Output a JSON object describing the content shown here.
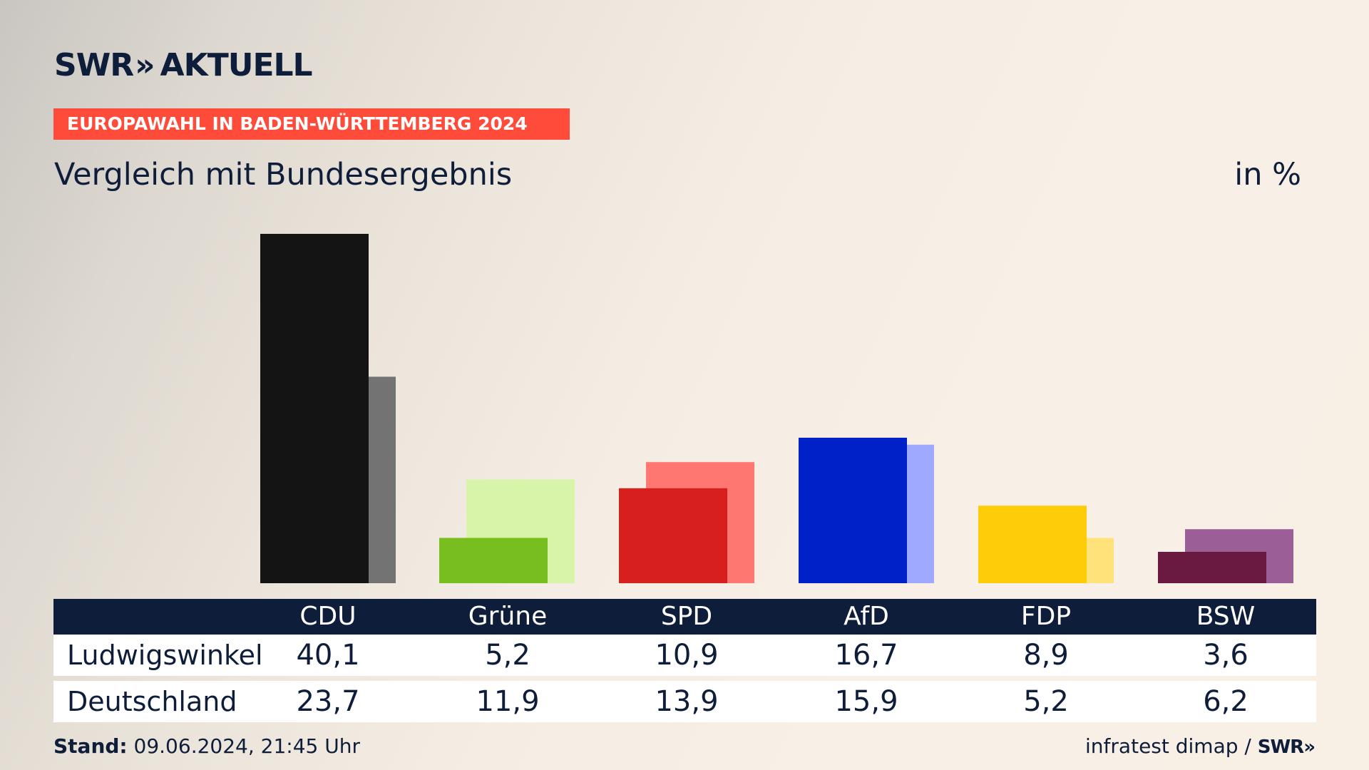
{
  "header": {
    "logo_text": "SWR",
    "logo_chevron": "»",
    "logo_suffix": "AKTUELL",
    "banner": "EUROPAWAHL IN BADEN-WÜRTTEMBERG 2024",
    "subtitle": "Vergleich mit Bundesergebnis",
    "unit": "in %"
  },
  "chart_data": {
    "type": "bar",
    "categories": [
      "CDU",
      "Grüne",
      "SPD",
      "AfD",
      "FDP",
      "BSW"
    ],
    "series": [
      {
        "name": "Ludwigswinkel",
        "values": [
          40.1,
          5.2,
          10.9,
          16.7,
          8.9,
          3.6
        ]
      },
      {
        "name": "Deutschland",
        "values": [
          23.7,
          11.9,
          13.9,
          15.9,
          5.2,
          6.2
        ]
      }
    ],
    "ylim": [
      0,
      40.1
    ],
    "colors": {
      "primary": [
        "#141414",
        "#78be1e",
        "#d7201e",
        "#0021c8",
        "#ffcc0a",
        "#6a1a41"
      ],
      "secondary": [
        "#737373",
        "#d8f4a9",
        "#ff7770",
        "#9ea9ff",
        "#ffe27a",
        "#9b5e96"
      ]
    }
  },
  "table": {
    "headers": [
      "CDU",
      "Grüne",
      "SPD",
      "AfD",
      "FDP",
      "BSW"
    ],
    "rows": [
      {
        "label": "Ludwigswinkel",
        "values": [
          "40,1",
          "5,2",
          "10,9",
          "16,7",
          "8,9",
          "3,6"
        ]
      },
      {
        "label": "Deutschland",
        "values": [
          "23,7",
          "11,9",
          "13,9",
          "15,9",
          "5,2",
          "6,2"
        ]
      }
    ]
  },
  "footer": {
    "stand_label": "Stand:",
    "stand_value": "09.06.2024, 21:45 Uhr",
    "source": "infratest dimap /",
    "source_logo": "SWR»"
  }
}
